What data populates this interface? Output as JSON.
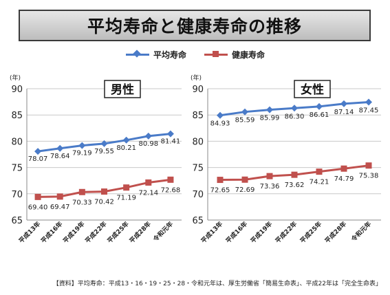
{
  "page_title": "平均寿命と健康寿命の推移",
  "legend": [
    {
      "label": "平均寿命",
      "color": "#4a7bc8",
      "marker": "diamond"
    },
    {
      "label": "健康寿命",
      "color": "#c0504d",
      "marker": "square"
    }
  ],
  "source_note": "【資料】平均寿命：平成13・16・19・25・28・令和元年は、厚生労働省「簡易生命表」、平成22年は「完全生命表」",
  "chart_data": [
    {
      "type": "line",
      "title": "男性",
      "ylabel": "(年)",
      "ylim": [
        65,
        90
      ],
      "yticks": [
        "65",
        "70",
        "75",
        "80",
        "85",
        "90"
      ],
      "grid": true,
      "categories": [
        "平成13年",
        "平成16年",
        "平成19年",
        "平成22年",
        "平成25年",
        "平成28年",
        "令和元年"
      ],
      "series": [
        {
          "name": "平均寿命",
          "color": "#4a7bc8",
          "marker": "diamond",
          "values": [
            78.07,
            78.64,
            79.19,
            79.55,
            80.21,
            80.98,
            81.41
          ],
          "labels": [
            "78.07",
            "78.64",
            "79.19",
            "79.55",
            "80.21",
            "80.98",
            "81.41"
          ]
        },
        {
          "name": "健康寿命",
          "color": "#c0504d",
          "marker": "square",
          "values": [
            69.4,
            69.47,
            70.33,
            70.42,
            71.19,
            72.14,
            72.68
          ],
          "labels": [
            "69.40",
            "69.47",
            "70.33",
            "70.42",
            "71.19",
            "72.14",
            "72.68"
          ]
        }
      ]
    },
    {
      "type": "line",
      "title": "女性",
      "ylabel": "(年)",
      "ylim": [
        65,
        90
      ],
      "yticks": [
        "65",
        "70",
        "75",
        "80",
        "85",
        "90"
      ],
      "grid": true,
      "categories": [
        "平成13年",
        "平成16年",
        "平成19年",
        "平成22年",
        "平成25年",
        "平成28年",
        "令和元年"
      ],
      "series": [
        {
          "name": "平均寿命",
          "color": "#4a7bc8",
          "marker": "diamond",
          "values": [
            84.93,
            85.59,
            85.99,
            86.3,
            86.61,
            87.14,
            87.45
          ],
          "labels": [
            "84.93",
            "85.59",
            "85.99",
            "86.30",
            "86.61",
            "87.14",
            "87.45"
          ]
        },
        {
          "name": "健康寿命",
          "color": "#c0504d",
          "marker": "square",
          "values": [
            72.65,
            72.69,
            73.36,
            73.62,
            74.21,
            74.79,
            75.38
          ],
          "labels": [
            "72.65",
            "72.69",
            "73.36",
            "73.62",
            "74.21",
            "74.79",
            "75.38"
          ]
        }
      ]
    }
  ]
}
